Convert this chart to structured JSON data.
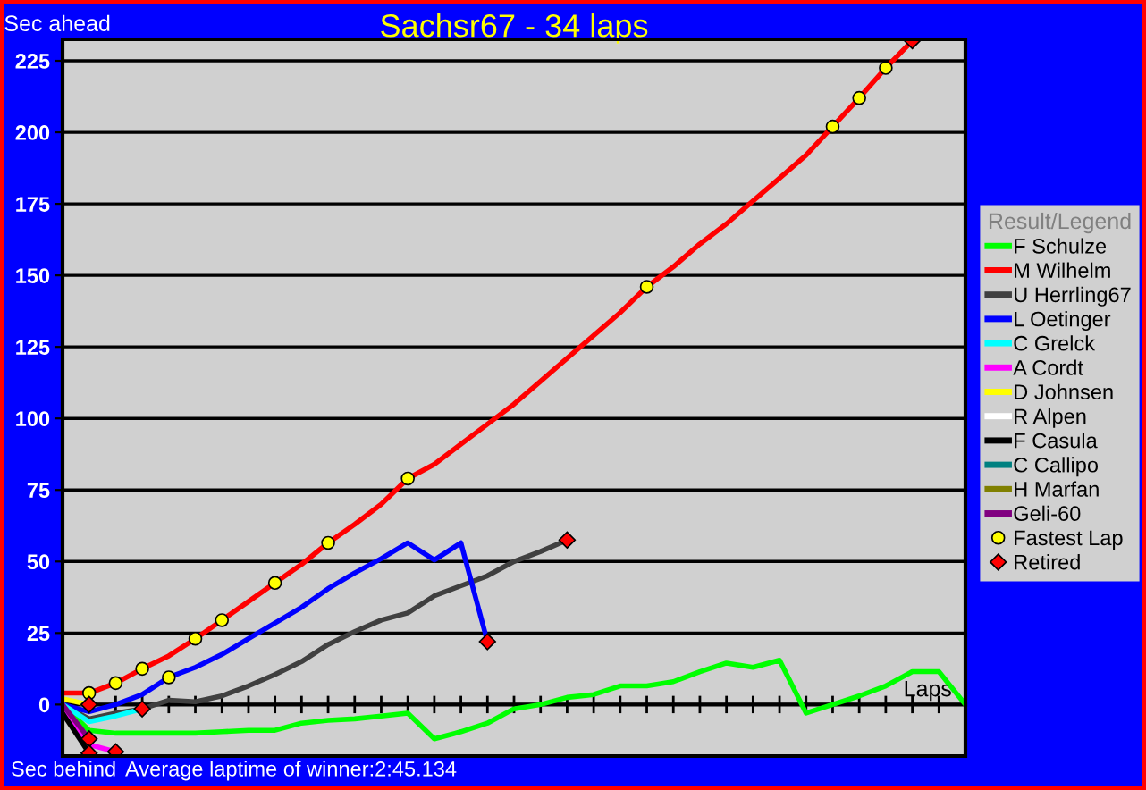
{
  "chart_data": {
    "type": "line",
    "title": "Sachsr67 - 34 laps",
    "ylabel": "Sec ahead",
    "xlabel": "Laps",
    "legend_title": "Result/Legend",
    "annotations": [
      "Sec behind",
      "Average laptime of winner:2:45.134"
    ],
    "categories": [
      null,
      null,
      null,
      null,
      null,
      null,
      null,
      null,
      null,
      null,
      null,
      null,
      null,
      null,
      null,
      null,
      null,
      null,
      null,
      null,
      null,
      null,
      null,
      null,
      null,
      null,
      null,
      null,
      null,
      null,
      null,
      null,
      null,
      null,
      null
    ],
    "ylim": [
      -18,
      232.5
    ],
    "yticks": [
      0,
      25,
      50,
      75,
      100,
      125,
      150,
      175,
      200,
      225
    ],
    "tick_labels": "y",
    "grid": "y",
    "legend": "right",
    "line_style": "solid",
    "series": [
      {
        "name": "F Schulze",
        "color": "#00ff00",
        "values": [
          0,
          -9,
          -10,
          -10,
          -10,
          -10,
          -9.5,
          -9,
          -9,
          -6.5,
          -5.5,
          -5,
          -4,
          -3,
          -12,
          -9.5,
          -6.5,
          -1.5,
          0,
          2.5,
          3.5,
          6.5,
          6.5,
          8,
          11.5,
          14.5,
          13,
          15.5,
          -3,
          0,
          3,
          6.5,
          11.5,
          11.5,
          0
        ]
      },
      {
        "name": "M Wilhelm",
        "color": "#ff0000",
        "values": [
          4,
          4,
          7.5,
          12.5,
          17,
          23,
          29.5,
          36,
          42.5,
          49,
          56.5,
          63,
          70,
          79,
          84,
          91,
          98,
          105,
          113,
          121,
          129,
          137,
          146,
          153,
          161,
          168,
          176,
          184,
          192,
          202,
          212,
          222.5,
          232,
          null,
          null
        ]
      },
      {
        "name": "U Herrling67",
        "color": "#404040",
        "values": [
          0,
          -5,
          -3,
          -1.5,
          1.5,
          1,
          3,
          6.5,
          10.5,
          15,
          21,
          25.5,
          29.5,
          32,
          38,
          41.5,
          45,
          50,
          53.5,
          57.5,
          null,
          null,
          null,
          null,
          null,
          null,
          null,
          null,
          null,
          null,
          null,
          null,
          null,
          null,
          null
        ]
      },
      {
        "name": "L Oetinger",
        "color": "#0000ff",
        "values": [
          0,
          -2.5,
          0,
          3.5,
          9.5,
          13,
          17.5,
          23,
          28.5,
          34,
          40.5,
          46,
          51,
          56.5,
          50.5,
          56.5,
          22,
          null,
          null,
          null,
          null,
          null,
          null,
          null,
          null,
          null,
          null,
          null,
          null,
          null,
          null,
          null,
          null,
          null,
          null
        ]
      },
      {
        "name": "C Grelck",
        "color": "#00ffff",
        "values": [
          0,
          -6,
          -4,
          -1.5,
          null,
          null,
          null,
          null,
          null,
          null,
          null,
          null,
          null,
          null,
          null,
          null,
          null,
          null,
          null,
          null,
          null,
          null,
          null,
          null,
          null,
          null,
          null,
          null,
          null,
          null,
          null,
          null,
          null,
          null,
          null
        ]
      },
      {
        "name": "A Cordt",
        "color": "#ff00ff",
        "values": [
          0,
          -14,
          -16.5,
          null,
          null,
          null,
          null,
          null,
          null,
          null,
          null,
          null,
          null,
          null,
          null,
          null,
          null,
          null,
          null,
          null,
          null,
          null,
          null,
          null,
          null,
          null,
          null,
          null,
          null,
          null,
          null,
          null,
          null,
          null,
          null
        ]
      },
      {
        "name": "D Johnsen",
        "color": "#ffff00",
        "values": [
          2,
          0,
          null,
          null,
          null,
          null,
          null,
          null,
          null,
          null,
          null,
          null,
          null,
          null,
          null,
          null,
          null,
          null,
          null,
          null,
          null,
          null,
          null,
          null,
          null,
          null,
          null,
          null,
          null,
          null,
          null,
          null,
          null,
          null,
          null
        ]
      },
      {
        "name": "R Alpen",
        "color": "#ffffff",
        "values": [
          null,
          null,
          null,
          null,
          null,
          null,
          null,
          null,
          null,
          null,
          null,
          null,
          null,
          null,
          null,
          null,
          null,
          null,
          null,
          null,
          null,
          null,
          null,
          null,
          null,
          null,
          null,
          null,
          null,
          null,
          null,
          null,
          null,
          null,
          null
        ]
      },
      {
        "name": "F Casula",
        "color": "#000000",
        "values": [
          -3,
          -17,
          null,
          null,
          null,
          null,
          null,
          null,
          null,
          null,
          null,
          null,
          null,
          null,
          null,
          null,
          null,
          null,
          null,
          null,
          null,
          null,
          null,
          null,
          null,
          null,
          null,
          null,
          null,
          null,
          null,
          null,
          null,
          null,
          null
        ]
      },
      {
        "name": "C Callipo",
        "color": "#008080",
        "values": [
          null,
          null,
          null,
          null,
          null,
          null,
          null,
          null,
          null,
          null,
          null,
          null,
          null,
          null,
          null,
          null,
          null,
          null,
          null,
          null,
          null,
          null,
          null,
          null,
          null,
          null,
          null,
          null,
          null,
          null,
          null,
          null,
          null,
          null,
          null
        ]
      },
      {
        "name": "H Marfan",
        "color": "#808000",
        "values": [
          null,
          null,
          null,
          null,
          null,
          null,
          null,
          null,
          null,
          null,
          null,
          null,
          null,
          null,
          null,
          null,
          null,
          null,
          null,
          null,
          null,
          null,
          null,
          null,
          null,
          null,
          null,
          null,
          null,
          null,
          null,
          null,
          null,
          null,
          null
        ]
      },
      {
        "name": "Geli-60",
        "color": "#800080",
        "values": [
          0,
          -12,
          null,
          null,
          null,
          null,
          null,
          null,
          null,
          null,
          null,
          null,
          null,
          null,
          null,
          null,
          null,
          null,
          null,
          null,
          null,
          null,
          null,
          null,
          null,
          null,
          null,
          null,
          null,
          null,
          null,
          null,
          null,
          null,
          null
        ]
      },
      {
        "name": "Fastest Lap",
        "type": "scatter",
        "marker": "circle",
        "color": "#ffff00",
        "values": [
          null,
          4,
          7.5,
          12.5,
          9.5,
          23,
          29.5,
          null,
          42.5,
          null,
          56.5,
          null,
          null,
          79,
          null,
          null,
          null,
          null,
          null,
          null,
          null,
          null,
          146,
          null,
          null,
          null,
          null,
          null,
          null,
          202,
          212,
          222.5,
          null,
          null,
          null
        ]
      },
      {
        "name": "Retired",
        "type": "scatter",
        "marker": "diamond",
        "color": "#ff0000",
        "values": [
          null,
          0,
          -16.5,
          -1.5,
          null,
          null,
          null,
          null,
          null,
          null,
          null,
          null,
          null,
          null,
          null,
          null,
          22,
          null,
          null,
          57.5,
          null,
          null,
          null,
          null,
          null,
          null,
          null,
          null,
          null,
          null,
          null,
          null,
          232,
          null,
          null
        ]
      },
      {
        "type": "scatter",
        "marker": "diamond",
        "color": "#ff0000",
        "values": [
          null,
          -12,
          null,
          null,
          null,
          null,
          null,
          null,
          null,
          null,
          null,
          null,
          null,
          null,
          null,
          null,
          null,
          null,
          null,
          null,
          null,
          null,
          null,
          null,
          null,
          null,
          null,
          null,
          null,
          null,
          null,
          null,
          null,
          null,
          null
        ]
      },
      {
        "type": "scatter",
        "marker": "diamond",
        "color": "#ff0000",
        "values": [
          null,
          -17,
          null,
          null,
          null,
          null,
          null,
          null,
          null,
          null,
          null,
          null,
          null,
          null,
          null,
          null,
          null,
          null,
          null,
          null,
          null,
          null,
          null,
          null,
          null,
          null,
          null,
          null,
          null,
          null,
          null,
          null,
          null,
          null,
          null
        ]
      }
    ]
  }
}
